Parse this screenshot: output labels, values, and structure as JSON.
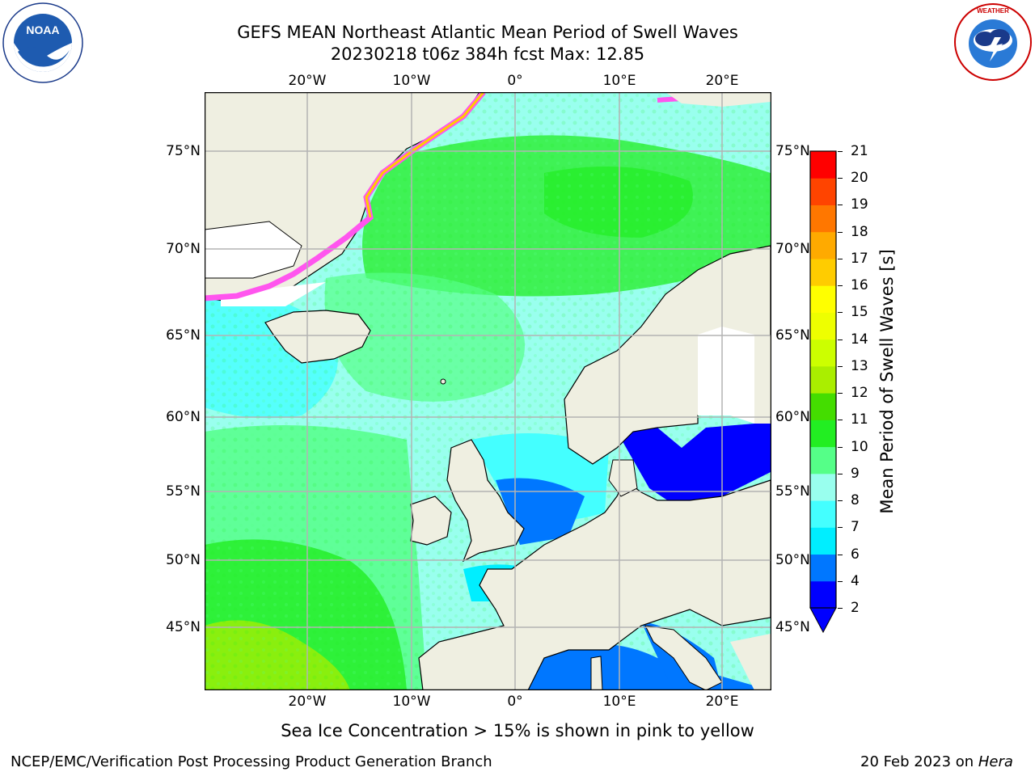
{
  "header": {
    "title_line1": "GEFS MEAN Northeast Atlantic Mean Period of Swell Waves",
    "title_line2": "20230218 t06z 384h fcst   Max: 12.85"
  },
  "logos": {
    "noara_text": "NOAA",
    "noaa_ring_text": "NATIONAL OCEANIC AND ATMOSPHERIC ADMINISTRATION · U.S. DEPARTMENT OF COMMERCE",
    "nws_ring_text": "NATIONAL WEATHER SERVICE"
  },
  "map": {
    "x_ticks": [
      "20°W",
      "10°W",
      "0°",
      "10°E",
      "20°E"
    ],
    "y_ticks": [
      "75°N",
      "70°N",
      "65°N",
      "60°N",
      "55°N",
      "50°N",
      "45°N"
    ],
    "colors": {
      "land": "#efefe1",
      "ocean_main": "#99ffee",
      "ice_edge": "#ff55ee",
      "grid": "#b3b3b3",
      "coast": "#000000"
    }
  },
  "colorbar": {
    "title": "Mean Period of Swell Waves [s]",
    "ticks": [
      "2",
      "4",
      "6",
      "7",
      "8",
      "9",
      "10",
      "11",
      "12",
      "13",
      "14",
      "15",
      "16",
      "17",
      "18",
      "19",
      "20",
      "21"
    ],
    "colors": [
      "#0000ff",
      "#0077ff",
      "#00eeff",
      "#44ffff",
      "#99ffee",
      "#55ff88",
      "#22ee22",
      "#44dd00",
      "#aaee00",
      "#ccff00",
      "#eeff00",
      "#ffff00",
      "#ffcc00",
      "#ffaa00",
      "#ff7700",
      "#ff4400",
      "#ff0000"
    ],
    "extend_color": "#0000ff"
  },
  "footer": {
    "note": "Sea Ice Concentration > 15% is shown in pink to yellow",
    "left": "NCEP/EMC/Verification Post Processing Product Generation Branch",
    "right_prefix": "20 Feb 2023 on ",
    "right_host": "Hera"
  }
}
